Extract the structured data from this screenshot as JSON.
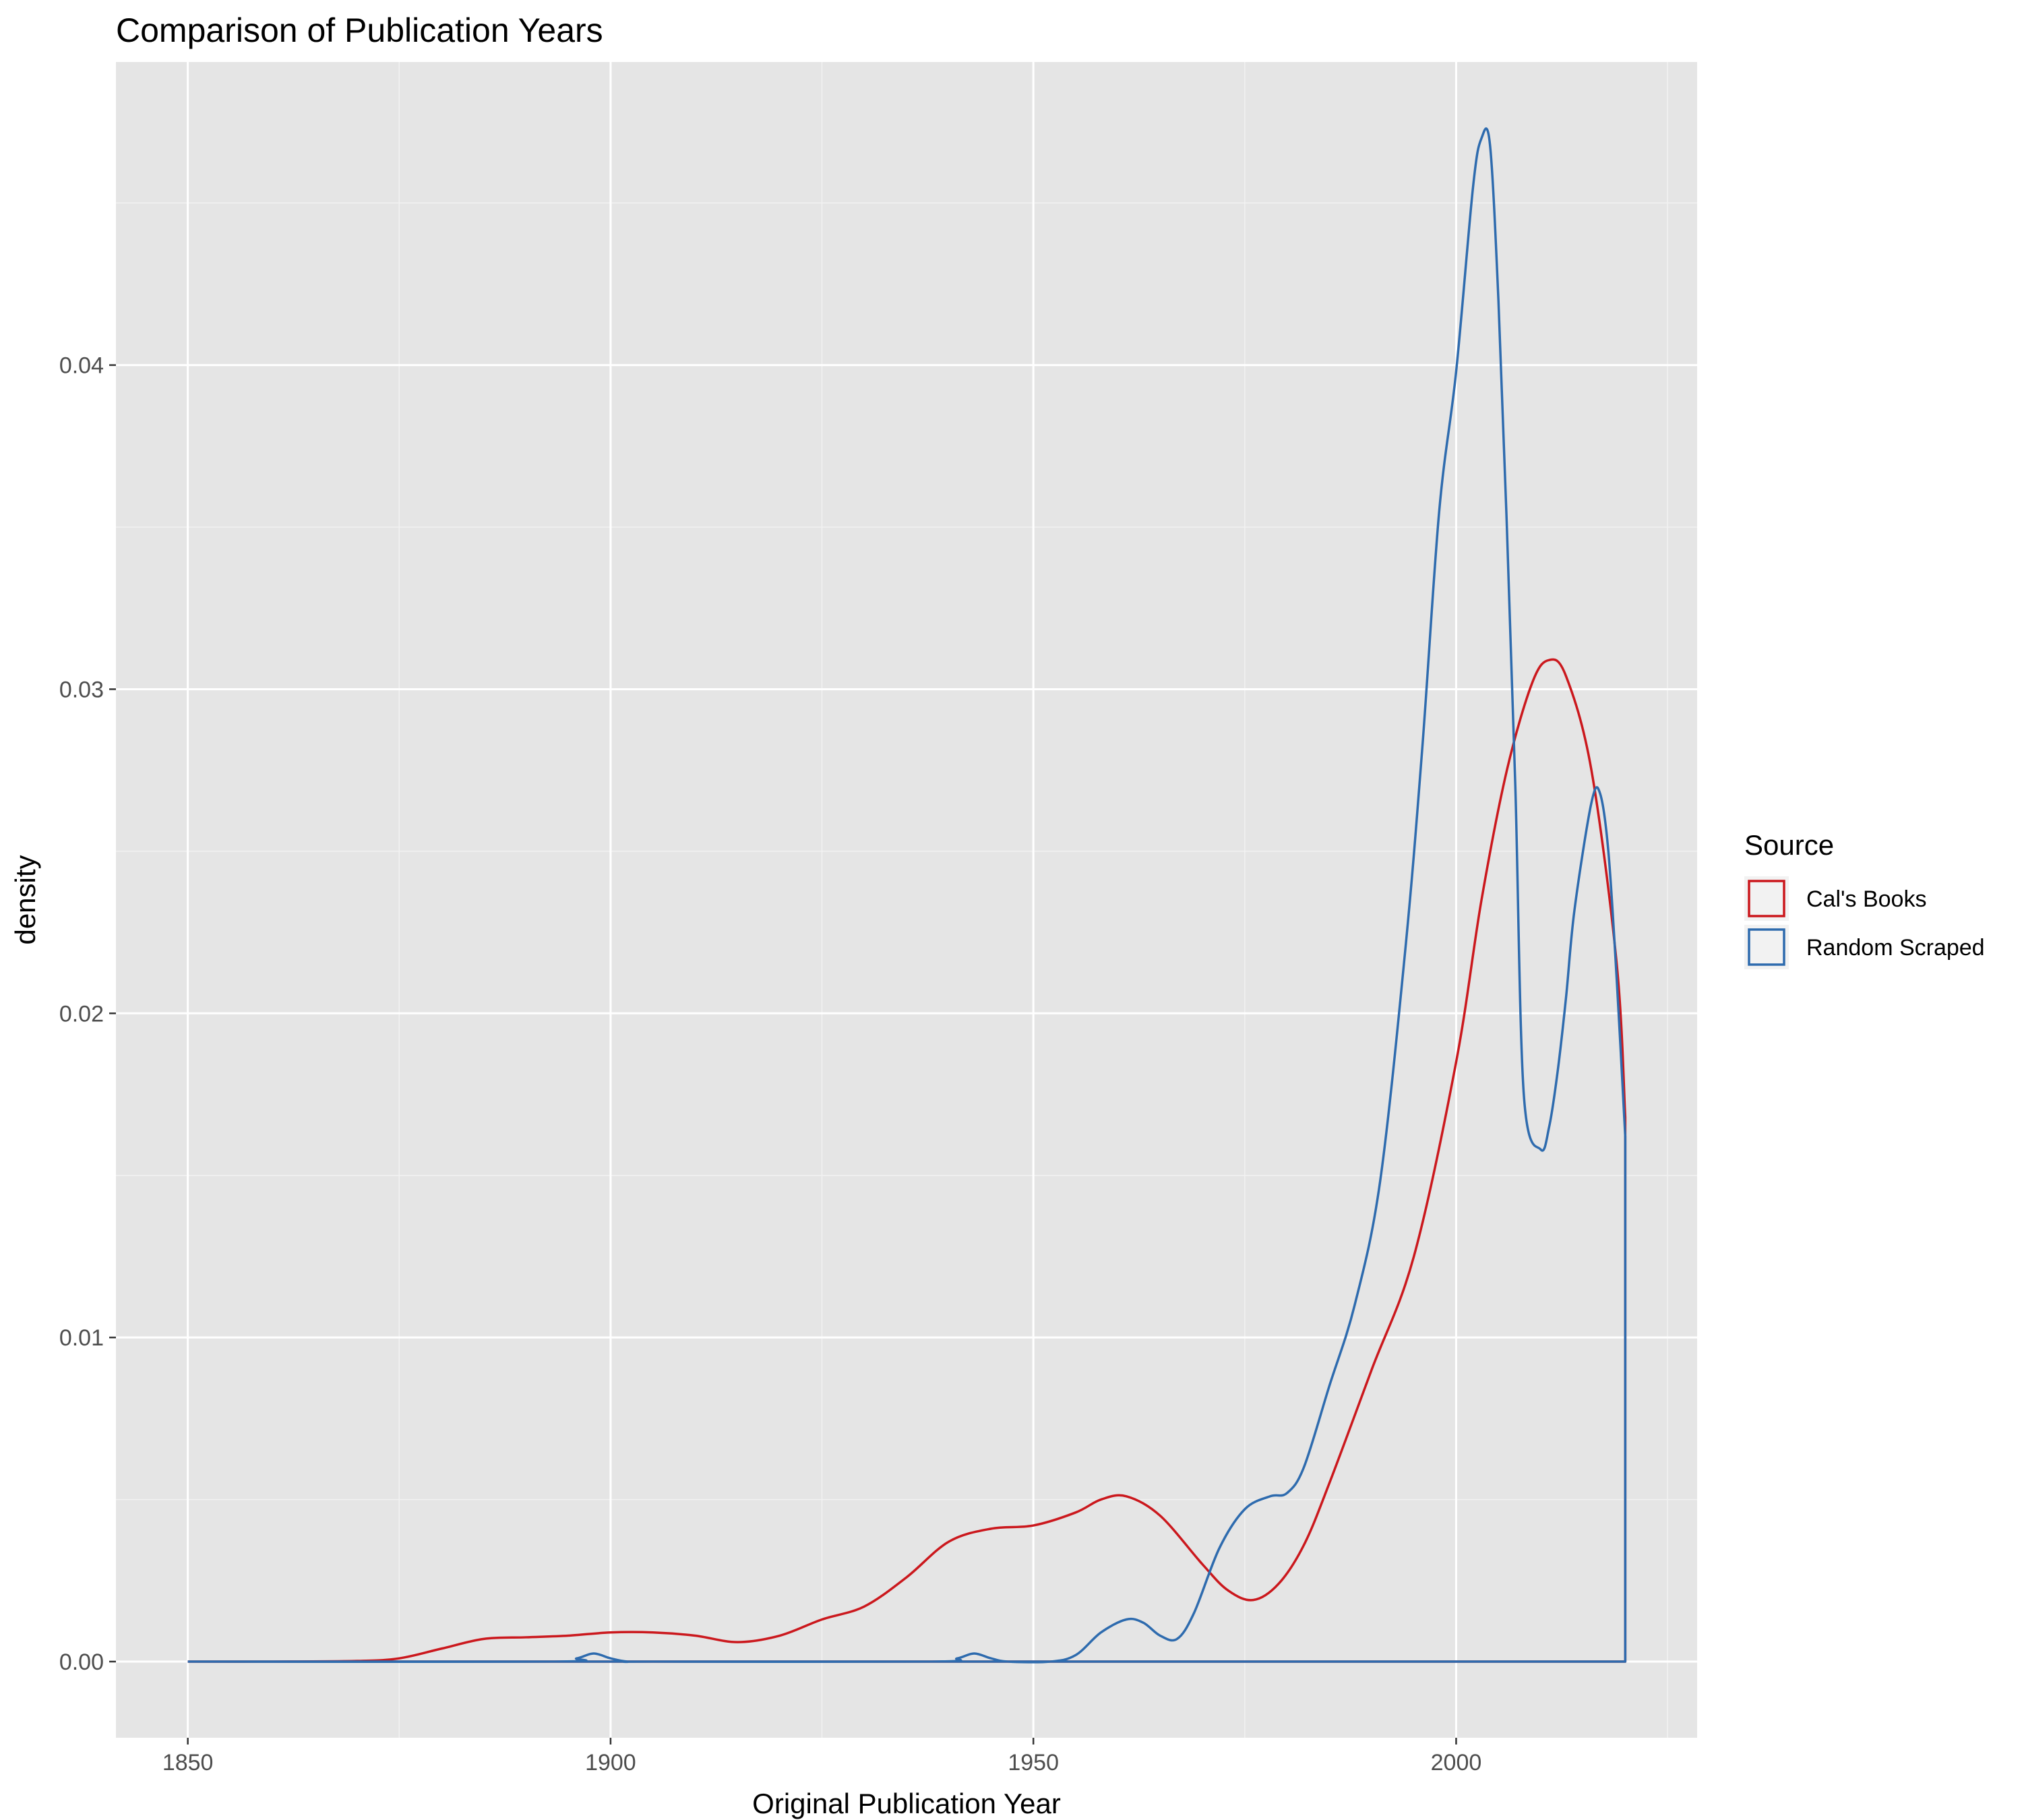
{
  "chart_data": {
    "type": "line",
    "title": "Comparison of Publication Years",
    "xlabel": "Original Publication Year",
    "ylabel": "density",
    "xlim": [
      1841.5,
      2028.5
    ],
    "ylim": [
      -0.00235,
      0.04935
    ],
    "x_ticks": [
      1850,
      1900,
      1950,
      2000
    ],
    "x_tick_labels": [
      "1850",
      "1900",
      "1950",
      "2000"
    ],
    "x_minor_ticks": [
      1875,
      1925,
      1975,
      2025
    ],
    "y_ticks": [
      0.0,
      0.01,
      0.02,
      0.03,
      0.04
    ],
    "y_tick_labels": [
      "0.00",
      "0.01",
      "0.02",
      "0.03",
      "0.04"
    ],
    "y_minor_ticks": [
      0.005,
      0.015,
      0.025,
      0.035,
      0.045
    ],
    "grid": true,
    "legend": {
      "title": "Source",
      "position": "right"
    },
    "series": [
      {
        "name": "Cal's Books",
        "color": "#CB181D",
        "x": [
          1850,
          1860,
          1870,
          1875,
          1880,
          1885,
          1890,
          1895,
          1900,
          1905,
          1910,
          1915,
          1920,
          1925,
          1930,
          1935,
          1940,
          1945,
          1950,
          1955,
          1958,
          1961,
          1965,
          1970,
          1973,
          1976,
          1979,
          1982,
          1985,
          1990,
          1995,
          2000,
          2003,
          2006,
          2009,
          2011,
          2013,
          2016,
          2019,
          2020
        ],
        "values": [
          0,
          0,
          2e-05,
          0.0001,
          0.0004,
          0.0007,
          0.00075,
          0.0008,
          0.0009,
          0.0009,
          0.0008,
          0.0006,
          0.0008,
          0.0013,
          0.0017,
          0.0026,
          0.0037,
          0.0041,
          0.0042,
          0.0046,
          0.005,
          0.0051,
          0.0045,
          0.003,
          0.0022,
          0.0019,
          0.0024,
          0.0036,
          0.0055,
          0.009,
          0.0125,
          0.0185,
          0.0235,
          0.0275,
          0.0302,
          0.0309,
          0.0304,
          0.0275,
          0.0215,
          0.0168
        ]
      },
      {
        "name": "Random Scraped",
        "color": "#2E6BAE",
        "x": [
          1850,
          1893,
          1896,
          1898,
          1900,
          1902,
          1905,
          1938,
          1941,
          1943,
          1945,
          1947,
          1952,
          1955,
          1958,
          1961,
          1963,
          1965,
          1967,
          1969,
          1972,
          1975,
          1978,
          1980,
          1982,
          1985,
          1988,
          1991,
          1994,
          1996,
          1998,
          2000,
          2002,
          2003,
          2004,
          2005,
          2006,
          2007,
          2008,
          2010,
          2011,
          2012,
          2013,
          2014,
          2016,
          2017,
          2018,
          2019,
          2020
        ],
        "values": [
          0,
          0,
          0.0001,
          0.00025,
          0.0001,
          0,
          0,
          0,
          0.0001,
          0.00025,
          0.0001,
          0,
          0,
          0.0002,
          0.0009,
          0.0013,
          0.0012,
          0.0008,
          0.0007,
          0.0015,
          0.0035,
          0.0047,
          0.0051,
          0.0052,
          0.006,
          0.0085,
          0.011,
          0.0148,
          0.022,
          0.0282,
          0.0355,
          0.0398,
          0.0455,
          0.047,
          0.0468,
          0.042,
          0.035,
          0.027,
          0.0175,
          0.0158,
          0.0165,
          0.0182,
          0.0205,
          0.0232,
          0.0265,
          0.0268,
          0.025,
          0.021,
          0.0162
        ]
      }
    ]
  }
}
